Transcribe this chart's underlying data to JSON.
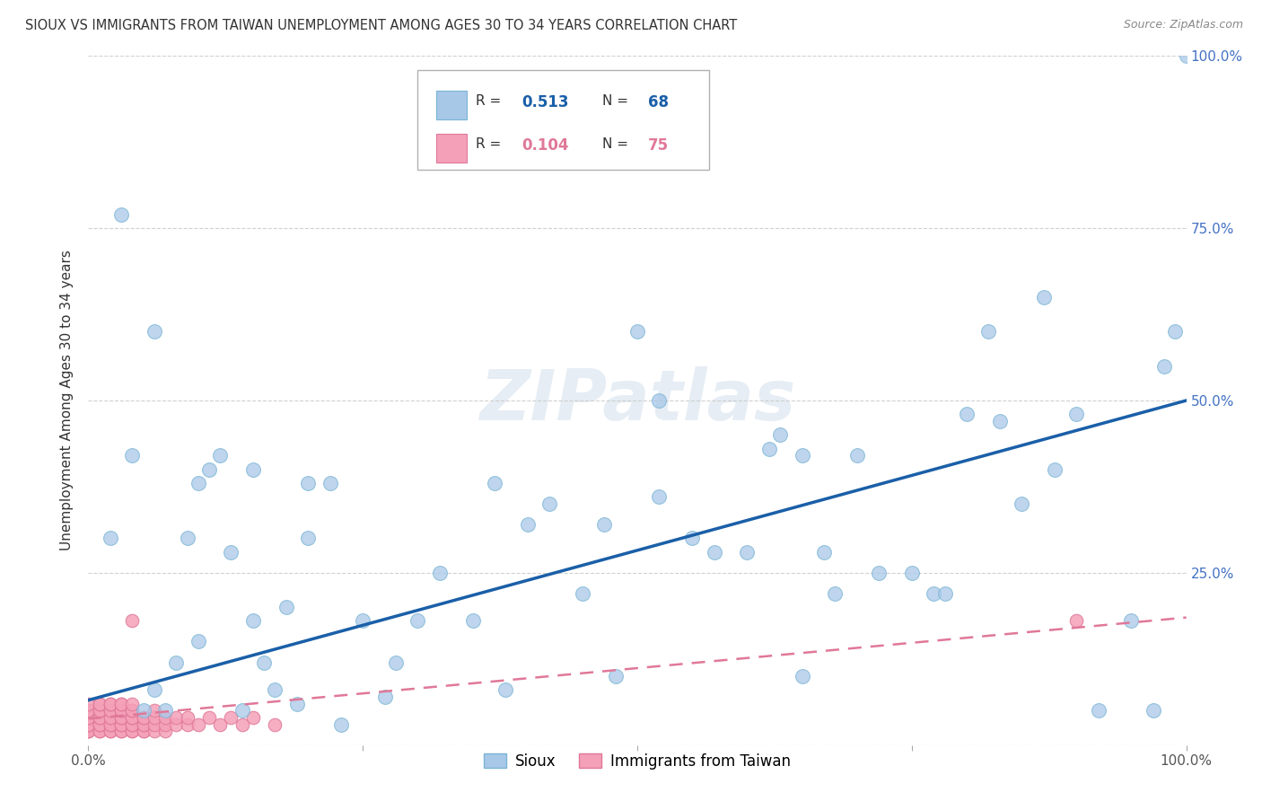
{
  "title": "SIOUX VS IMMIGRANTS FROM TAIWAN UNEMPLOYMENT AMONG AGES 30 TO 34 YEARS CORRELATION CHART",
  "source": "Source: ZipAtlas.com",
  "ylabel": "Unemployment Among Ages 30 to 34 years",
  "xlim": [
    0,
    1.0
  ],
  "ylim": [
    0,
    1.0
  ],
  "sioux_color": "#a8c8e8",
  "sioux_edge_color": "#7ab4d4",
  "taiwan_color": "#f4a0b8",
  "taiwan_edge_color": "#e07898",
  "sioux_R": 0.513,
  "sioux_N": 68,
  "taiwan_R": 0.104,
  "taiwan_N": 75,
  "sioux_line_color": "#1a5fa8",
  "taiwan_line_color": "#e07898",
  "sioux_x": [
    0.02,
    0.04,
    0.05,
    0.06,
    0.07,
    0.08,
    0.09,
    0.1,
    0.11,
    0.12,
    0.13,
    0.14,
    0.15,
    0.16,
    0.17,
    0.18,
    0.19,
    0.2,
    0.22,
    0.23,
    0.25,
    0.27,
    0.28,
    0.3,
    0.32,
    0.35,
    0.37,
    0.38,
    0.4,
    0.42,
    0.45,
    0.47,
    0.48,
    0.5,
    0.52,
    0.55,
    0.57,
    0.6,
    0.62,
    0.63,
    0.65,
    0.67,
    0.68,
    0.7,
    0.72,
    0.75,
    0.77,
    0.78,
    0.8,
    0.82,
    0.83,
    0.85,
    0.87,
    0.88,
    0.9,
    0.92,
    0.95,
    0.97,
    0.98,
    0.99,
    1.0,
    0.03,
    0.06,
    0.1,
    0.15,
    0.2,
    0.52,
    0.65
  ],
  "sioux_y": [
    0.3,
    0.42,
    0.05,
    0.08,
    0.05,
    0.12,
    0.3,
    0.15,
    0.4,
    0.42,
    0.28,
    0.05,
    0.18,
    0.12,
    0.08,
    0.2,
    0.06,
    0.3,
    0.38,
    0.03,
    0.18,
    0.07,
    0.12,
    0.18,
    0.25,
    0.18,
    0.38,
    0.08,
    0.32,
    0.35,
    0.22,
    0.32,
    0.1,
    0.6,
    0.36,
    0.3,
    0.28,
    0.28,
    0.43,
    0.45,
    0.42,
    0.28,
    0.22,
    0.42,
    0.25,
    0.25,
    0.22,
    0.22,
    0.48,
    0.6,
    0.47,
    0.35,
    0.65,
    0.4,
    0.48,
    0.05,
    0.18,
    0.05,
    0.55,
    0.6,
    1.0,
    0.77,
    0.6,
    0.38,
    0.4,
    0.38,
    0.5,
    0.1
  ],
  "taiwan_x": [
    0.0,
    0.0,
    0.0,
    0.0,
    0.0,
    0.0,
    0.0,
    0.0,
    0.0,
    0.0,
    0.01,
    0.01,
    0.01,
    0.01,
    0.01,
    0.01,
    0.01,
    0.01,
    0.01,
    0.01,
    0.02,
    0.02,
    0.02,
    0.02,
    0.02,
    0.02,
    0.02,
    0.02,
    0.02,
    0.02,
    0.03,
    0.03,
    0.03,
    0.03,
    0.03,
    0.03,
    0.03,
    0.03,
    0.03,
    0.03,
    0.04,
    0.04,
    0.04,
    0.04,
    0.04,
    0.04,
    0.04,
    0.04,
    0.04,
    0.05,
    0.05,
    0.05,
    0.05,
    0.05,
    0.05,
    0.06,
    0.06,
    0.06,
    0.06,
    0.07,
    0.07,
    0.07,
    0.08,
    0.08,
    0.09,
    0.09,
    0.1,
    0.11,
    0.12,
    0.13,
    0.14,
    0.15,
    0.17,
    0.9,
    0.04
  ],
  "taiwan_y": [
    0.02,
    0.02,
    0.02,
    0.03,
    0.03,
    0.04,
    0.04,
    0.05,
    0.05,
    0.06,
    0.02,
    0.02,
    0.03,
    0.03,
    0.04,
    0.04,
    0.05,
    0.05,
    0.06,
    0.06,
    0.02,
    0.02,
    0.03,
    0.03,
    0.04,
    0.04,
    0.05,
    0.05,
    0.06,
    0.06,
    0.02,
    0.02,
    0.03,
    0.03,
    0.04,
    0.04,
    0.05,
    0.05,
    0.06,
    0.06,
    0.02,
    0.02,
    0.03,
    0.03,
    0.04,
    0.04,
    0.05,
    0.05,
    0.06,
    0.02,
    0.02,
    0.03,
    0.03,
    0.04,
    0.04,
    0.02,
    0.03,
    0.04,
    0.05,
    0.02,
    0.03,
    0.04,
    0.03,
    0.04,
    0.03,
    0.04,
    0.03,
    0.04,
    0.03,
    0.04,
    0.03,
    0.04,
    0.03,
    0.18,
    0.18
  ],
  "sioux_line_x0": 0.0,
  "sioux_line_y0": 0.065,
  "sioux_line_x1": 1.0,
  "sioux_line_y1": 0.5,
  "taiwan_line_x0": 0.0,
  "taiwan_line_y0": 0.038,
  "taiwan_line_x1": 1.0,
  "taiwan_line_y1": 0.185
}
